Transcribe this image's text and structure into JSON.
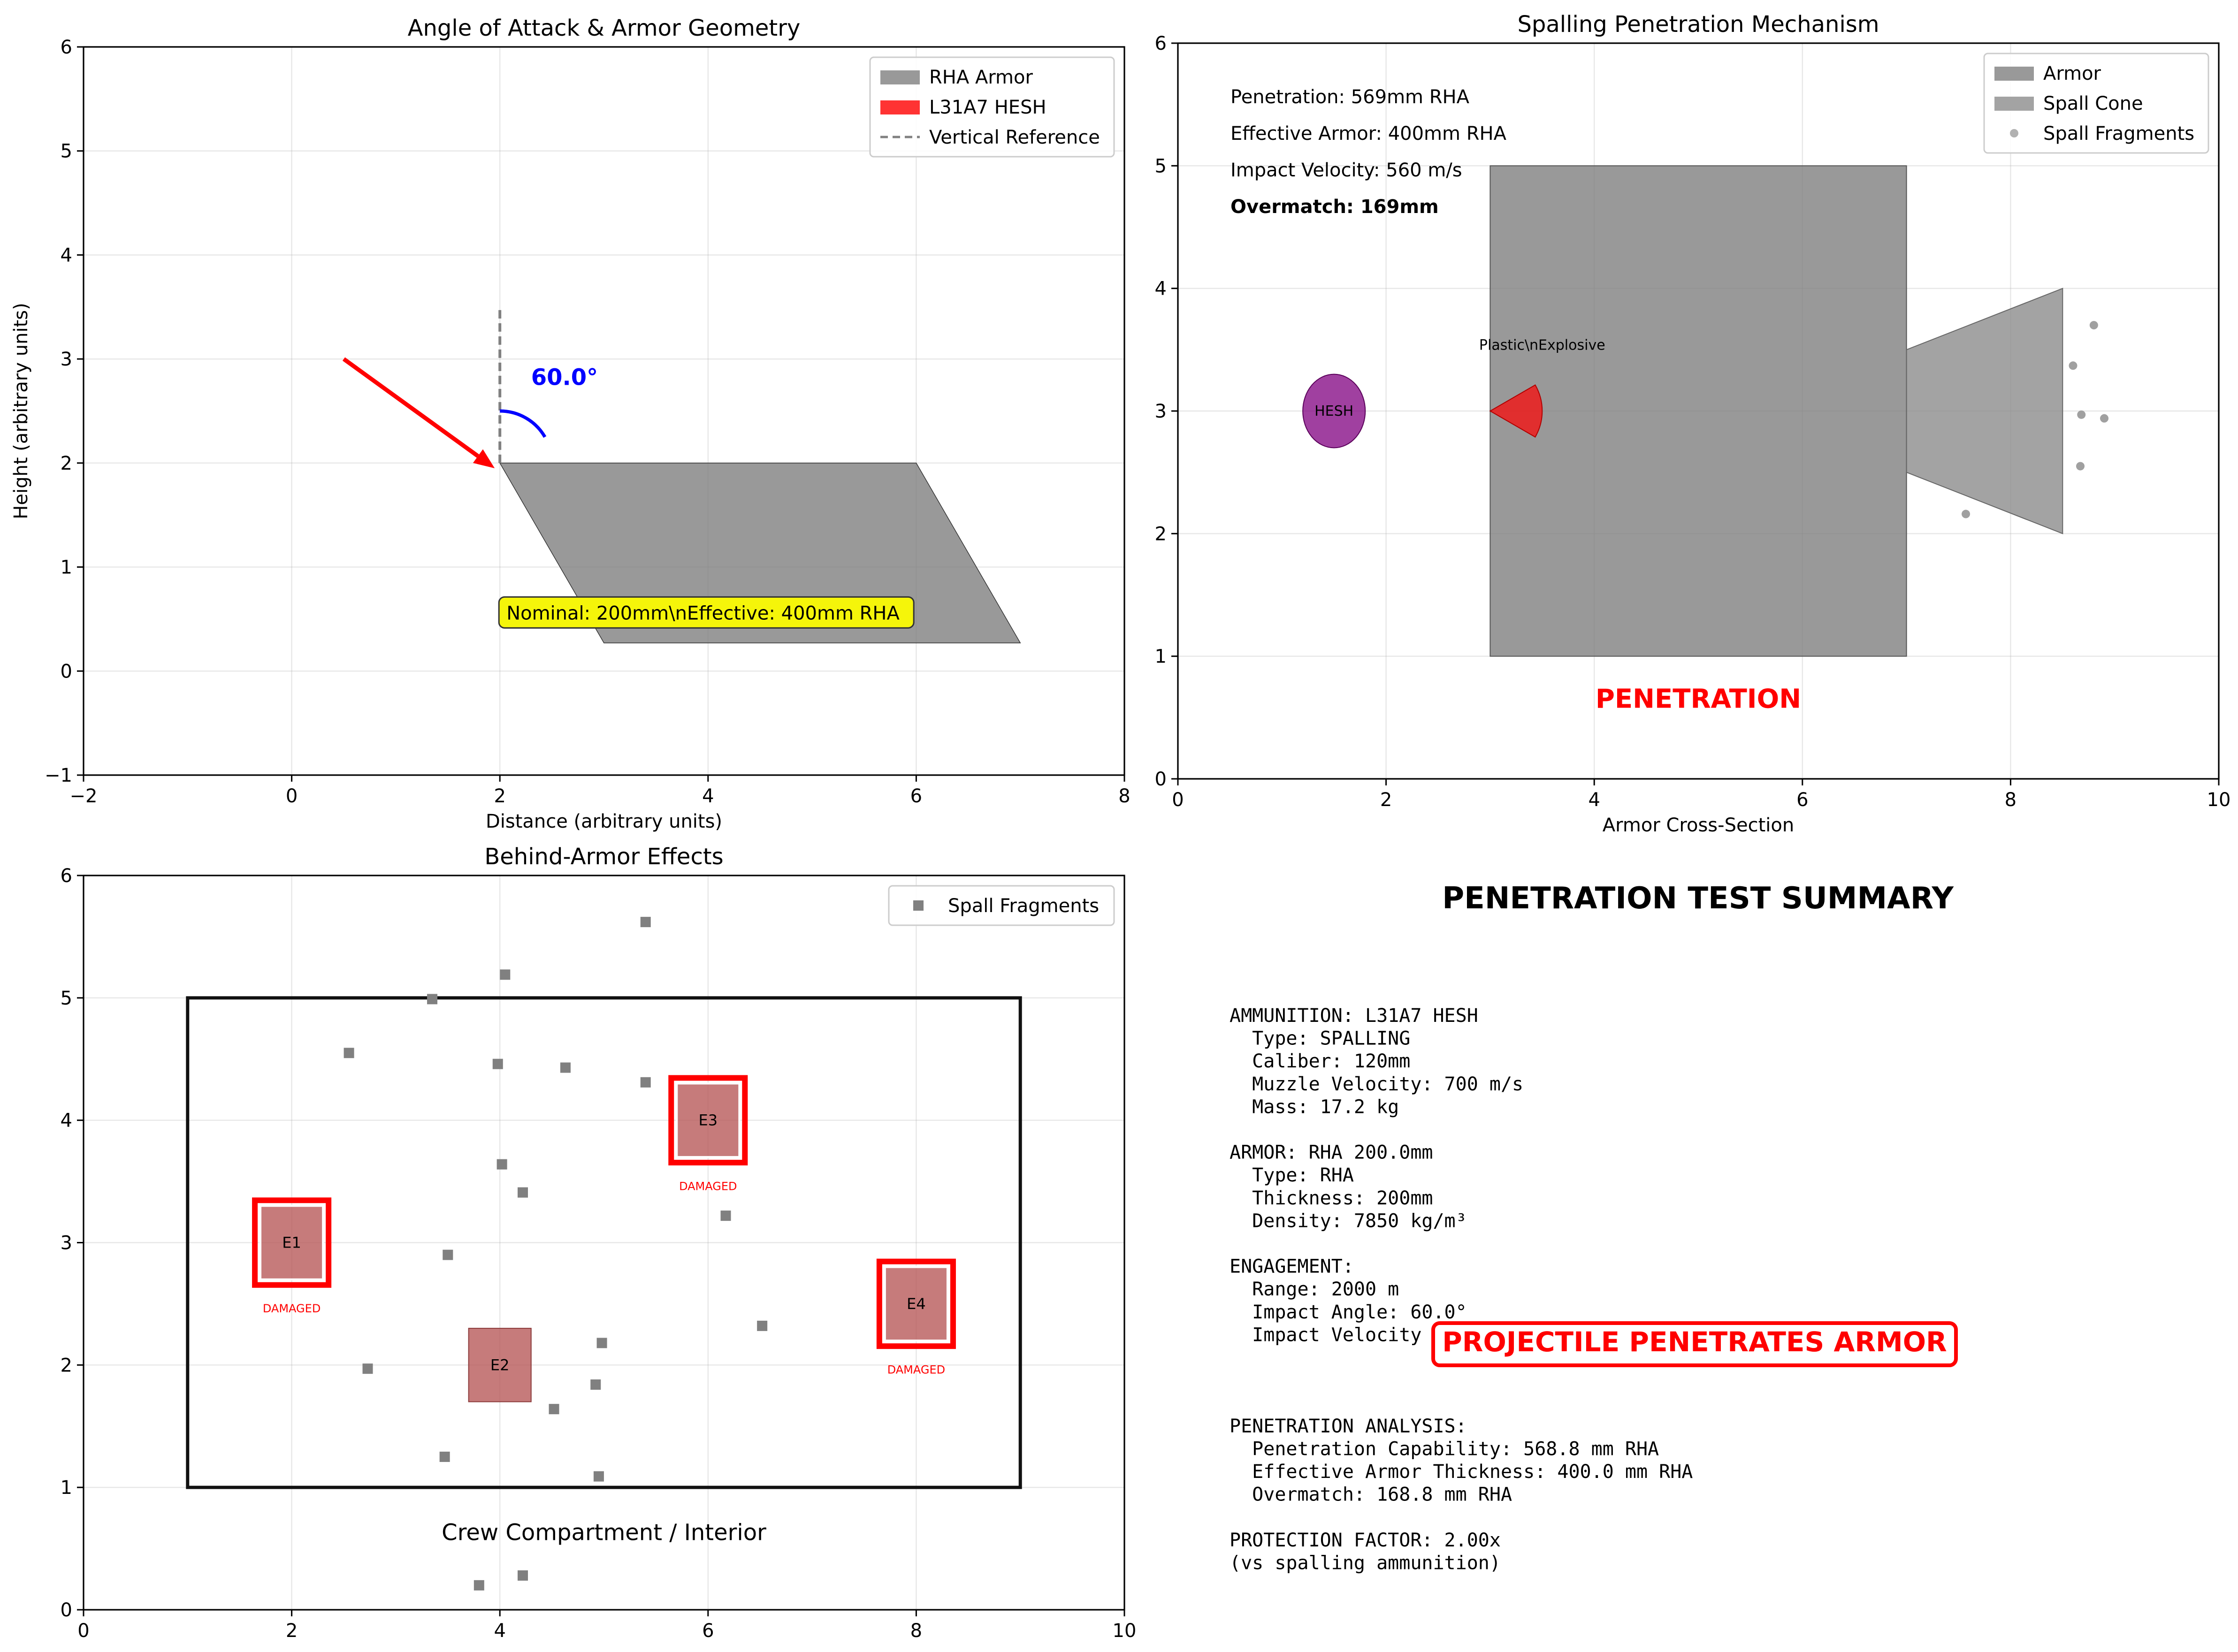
{
  "chart_data": [
    {
      "type": "diagram",
      "title": "Angle of Attack & Armor Geometry",
      "xlabel": "Distance (arbitrary units)",
      "ylabel": "Height (arbitrary units)",
      "xlim": [
        -2,
        8
      ],
      "ylim": [
        -1,
        6
      ],
      "xticks": [
        -2,
        0,
        2,
        4,
        6,
        8
      ],
      "yticks": [
        -1,
        0,
        1,
        2,
        3,
        4,
        5,
        6
      ],
      "xtick_labels": [
        "−2",
        "0",
        "2",
        "4",
        "6",
        "8"
      ],
      "ytick_labels": [
        "−1",
        "0",
        "1",
        "2",
        "3",
        "4",
        "5",
        "6"
      ],
      "grid": true,
      "legend": {
        "position": "upper right",
        "entries": [
          {
            "label": "RHA Armor",
            "color": "#808080",
            "kind": "patch"
          },
          {
            "label": "L31A7 HESH",
            "color": "#ff0000",
            "kind": "patch"
          },
          {
            "label": "Vertical Reference",
            "color": "#808080",
            "kind": "dashed"
          }
        ]
      },
      "armor_polygon": [
        [
          2,
          2
        ],
        [
          6,
          2
        ],
        [
          7,
          0.27
        ],
        [
          3,
          0.27
        ]
      ],
      "armor_color": "#808080",
      "projectile_arrow": {
        "from": [
          0.5,
          3.0
        ],
        "to": [
          1.95,
          1.95
        ],
        "color": "#ff0000"
      },
      "vertical_reference": {
        "x": 2,
        "y_from": 2,
        "y_to": 3.5,
        "color": "#808080"
      },
      "angle_arc": {
        "center": [
          2,
          2
        ],
        "radius": 0.5,
        "color": "#0000ff"
      },
      "angle_label": {
        "text": "60.0°",
        "x": 2.3,
        "y": 2.75,
        "color": "#0000ff"
      },
      "info_box": {
        "text": "Nominal: 200mm\\nEffective: 400mm RHA",
        "x": 2,
        "y": 0.55,
        "bg": "#f5f50a"
      }
    },
    {
      "type": "diagram",
      "title": "Spalling Penetration Mechanism",
      "xlabel": "Armor Cross-Section",
      "ylabel": "",
      "xlim": [
        0,
        10
      ],
      "ylim": [
        0,
        6
      ],
      "xticks": [
        0,
        2,
        4,
        6,
        8,
        10
      ],
      "yticks": [
        0,
        1,
        2,
        3,
        4,
        5,
        6
      ],
      "xtick_labels": [
        "0",
        "2",
        "4",
        "6",
        "8",
        "10"
      ],
      "ytick_labels": [
        "0",
        "1",
        "2",
        "3",
        "4",
        "5",
        "6"
      ],
      "grid": true,
      "legend": {
        "position": "upper right",
        "entries": [
          {
            "label": "Armor",
            "color": "#808080",
            "kind": "patch"
          },
          {
            "label": "Spall Cone",
            "color": "#8c8c8c",
            "kind": "patch"
          },
          {
            "label": "Spall Fragments",
            "color": "#a9a9a9",
            "kind": "dot"
          }
        ]
      },
      "armor_rect": {
        "x0": 3,
        "x1": 7,
        "y0": 1,
        "y1": 5
      },
      "spall_cone": [
        [
          7,
          3.5
        ],
        [
          8.5,
          4.0
        ],
        [
          8.5,
          2.0
        ],
        [
          7,
          2.5
        ]
      ],
      "hesh_ellipse": {
        "cx": 1.5,
        "cy": 3,
        "rx": 0.3,
        "ry": 0.3,
        "label": "HESH",
        "color": "#800080"
      },
      "explosive_wedge": {
        "apex": [
          3.0,
          3.0
        ],
        "radius": 0.5,
        "label": "Plastic\\nExplosive",
        "label_x": 3.5,
        "label_y": 3.5,
        "color": "#ff0000"
      },
      "spall_fragments": [
        [
          8.8,
          3.7
        ],
        [
          8.6,
          3.37
        ],
        [
          8.68,
          2.97
        ],
        [
          8.9,
          2.94
        ],
        [
          8.67,
          2.55
        ],
        [
          7.57,
          2.16
        ]
      ],
      "info_lines": [
        {
          "text": "Penetration: 569mm RHA",
          "bold": false
        },
        {
          "text": "Effective Armor: 400mm RHA",
          "bold": false
        },
        {
          "text": "Impact Velocity: 560 m/s",
          "bold": false
        },
        {
          "text": "Overmatch: 169mm",
          "bold": true
        }
      ],
      "result_label": {
        "text": "PENETRATION",
        "x": 5,
        "y": 0.58,
        "color": "#ff0000"
      }
    },
    {
      "type": "scatter",
      "title": "Behind-Armor Effects",
      "xlabel": "",
      "ylabel": "",
      "xlim": [
        0,
        10
      ],
      "ylim": [
        0,
        6
      ],
      "xticks": [
        0,
        2,
        4,
        6,
        8,
        10
      ],
      "yticks": [
        0,
        1,
        2,
        3,
        4,
        5,
        6
      ],
      "xtick_labels": [
        "0",
        "2",
        "4",
        "6",
        "8",
        "10"
      ],
      "ytick_labels": [
        "0",
        "1",
        "2",
        "3",
        "4",
        "5",
        "6"
      ],
      "grid": true,
      "legend": {
        "position": "upper right",
        "entries": [
          {
            "label": "Spall Fragments",
            "color": "#808080",
            "kind": "square"
          }
        ]
      },
      "compartment": {
        "x0": 1,
        "x1": 9,
        "y0": 1,
        "y1": 5,
        "label": "Crew Compartment / Interior",
        "label_x": 5,
        "label_y": 0.57
      },
      "equipment": [
        {
          "id": "E1",
          "x": 2.0,
          "y": 3.0,
          "damaged": true,
          "status": "DAMAGED"
        },
        {
          "id": "E2",
          "x": 4.0,
          "y": 2.0,
          "damaged": false,
          "status": ""
        },
        {
          "id": "E3",
          "x": 6.0,
          "y": 4.0,
          "damaged": true,
          "status": "DAMAGED"
        },
        {
          "id": "E4",
          "x": 8.0,
          "y": 2.5,
          "damaged": true,
          "status": "DAMAGED"
        }
      ],
      "spall_fragments": [
        [
          5.4,
          5.62
        ],
        [
          4.05,
          5.19
        ],
        [
          3.35,
          4.99
        ],
        [
          2.55,
          4.55
        ],
        [
          3.98,
          4.46
        ],
        [
          4.63,
          4.43
        ],
        [
          5.4,
          4.31
        ],
        [
          4.02,
          3.64
        ],
        [
          4.22,
          3.41
        ],
        [
          6.17,
          3.22
        ],
        [
          3.5,
          2.9
        ],
        [
          6.52,
          2.32
        ],
        [
          4.98,
          2.18
        ],
        [
          2.73,
          1.97
        ],
        [
          4.92,
          1.84
        ],
        [
          4.52,
          1.64
        ],
        [
          3.47,
          1.25
        ],
        [
          4.95,
          1.09
        ],
        [
          4.22,
          0.28
        ],
        [
          3.8,
          0.2
        ]
      ]
    },
    {
      "type": "table",
      "title": "PENETRATION TEST SUMMARY",
      "summary_lines": [
        "AMMUNITION: L31A7 HESH",
        "  Type: SPALLING",
        "  Caliber: 120mm",
        "  Muzzle Velocity: 700 m/s",
        "  Mass: 17.2 kg",
        "",
        "ARMOR: RHA 200.0mm",
        "  Type: RHA",
        "  Thickness: 200mm",
        "  Density: 7850 kg/m³",
        "",
        "ENGAGEMENT:",
        "  Range: 2000 m",
        "  Impact Angle: 60.0°",
        "  Impact Velocity",
        "",
        "",
        "",
        "PENETRATION ANALYSIS:",
        "  Penetration Capability: 568.8 mm RHA",
        "  Effective Armor Thickness: 400.0 mm RHA",
        "  Overmatch: 168.8 mm RHA",
        "",
        "PROTECTION FACTOR: 2.00x",
        "(vs spalling ammunition)"
      ],
      "verdict": {
        "text": "PROJECTILE PENETRATES ARMOR",
        "color": "#ff0000"
      }
    }
  ]
}
